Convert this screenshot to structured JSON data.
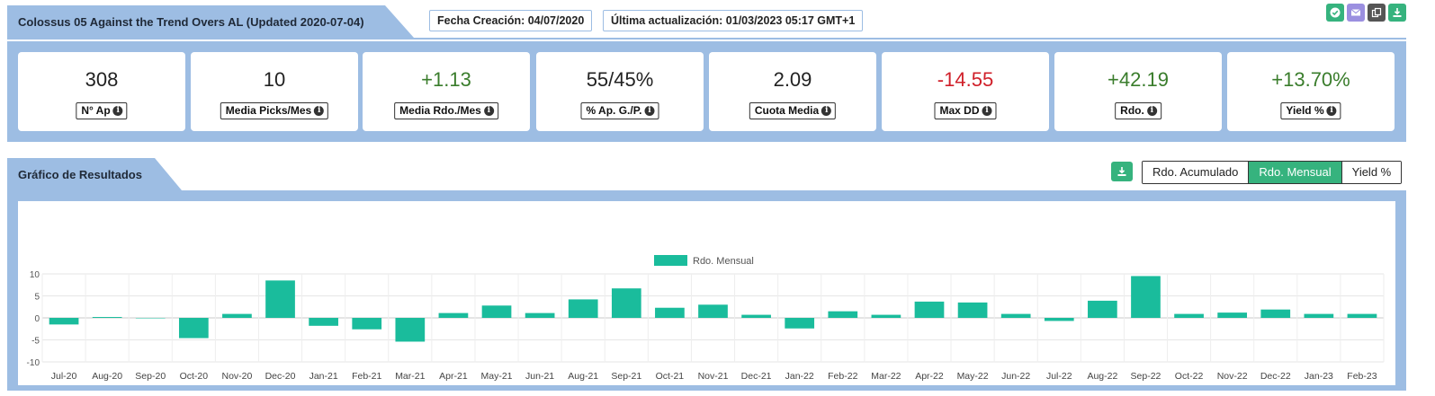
{
  "header": {
    "title": "Colossus 05 Against the Trend Overs AL (Updated 2020-07-04)",
    "fecha_creacion": "Fecha Creación: 04/07/2020",
    "ultima_actualizacion": "Última actualización: 01/03/2023 05:17 GMT+1",
    "icons": [
      {
        "name": "check-circle-icon",
        "color": "#36b37e"
      },
      {
        "name": "envelope-icon",
        "color": "#9b8fe0"
      },
      {
        "name": "copy-icon",
        "color": "#555555"
      },
      {
        "name": "download-icon",
        "color": "#36b37e"
      }
    ]
  },
  "stats": [
    {
      "value": "308",
      "label": "N° Ap",
      "color": "#222222"
    },
    {
      "value": "10",
      "label": "Media Picks/Mes",
      "color": "#222222"
    },
    {
      "value": "+1.13",
      "label": "Media Rdo./Mes",
      "color": "#3a7d2c"
    },
    {
      "value": "55/45%",
      "label": "% Ap. G./P.",
      "color": "#222222"
    },
    {
      "value": "2.09",
      "label": "Cuota Media",
      "color": "#222222"
    },
    {
      "value": "-14.55",
      "label": "Max DD",
      "color": "#d0202a"
    },
    {
      "value": "+42.19",
      "label": "Rdo.",
      "color": "#3a7d2c"
    },
    {
      "value": "+13.70%",
      "label": "Yield %",
      "color": "#3a7d2c"
    }
  ],
  "chart_section": {
    "title": "Gráfico de Resultados",
    "toggles": [
      {
        "label": "Rdo. Acumulado",
        "active": false
      },
      {
        "label": "Rdo. Mensual",
        "active": true
      },
      {
        "label": "Yield %",
        "active": false
      }
    ]
  },
  "chart_data": {
    "type": "bar",
    "legend": "Rdo. Mensual",
    "legend_position": "top",
    "color": "#1abc9c",
    "grid": true,
    "ylim": [
      -10,
      10
    ],
    "yticks": [
      "10",
      "5",
      "0",
      "-5",
      "-10"
    ],
    "categories": [
      "Jul-20",
      "Aug-20",
      "Sep-20",
      "Oct-20",
      "Nov-20",
      "Dec-20",
      "Jan-21",
      "Feb-21",
      "Mar-21",
      "Apr-21",
      "May-21",
      "Jun-21",
      "Aug-21",
      "Sep-21",
      "Oct-21",
      "Nov-21",
      "Dec-21",
      "Jan-22",
      "Feb-22",
      "Mar-22",
      "Apr-22",
      "May-22",
      "Jun-22",
      "Jul-22",
      "Aug-22",
      "Sep-22",
      "Oct-22",
      "Nov-22",
      "Dec-22",
      "Jan-23",
      "Feb-23"
    ],
    "values": [
      -1.5,
      0.2,
      0,
      -4.6,
      0.9,
      8.5,
      -1.8,
      -2.6,
      -5.4,
      1.1,
      2.8,
      1.1,
      4.2,
      6.7,
      2.3,
      3.0,
      0.7,
      -2.4,
      1.5,
      0.7,
      3.7,
      3.5,
      0.9,
      -0.7,
      3.9,
      9.5,
      0.9,
      1.2,
      1.9,
      0.9,
      0.9
    ]
  }
}
